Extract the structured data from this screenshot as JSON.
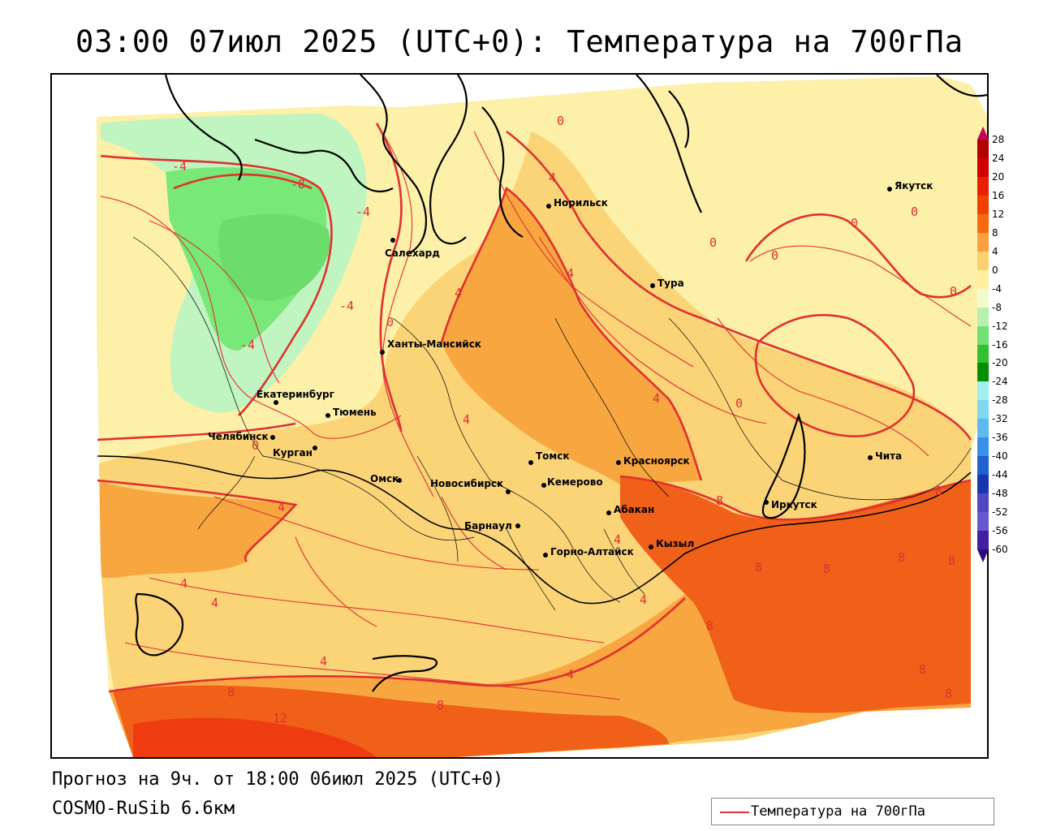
{
  "title": "03:00 07июл 2025 (UTC+0): Температура на 700гПа",
  "forecast_line": "Прогноз на 9ч. от 18:00 06июл 2025 (UTC+0)",
  "model_line": "COSMO-RuSib 6.6км",
  "legend": {
    "label": "Температура на 700гПа",
    "line_color": "#e03030"
  },
  "colors": {
    "temp_bands": {
      "lt_-8": "#6cdc6c",
      "-8_-4": "#78e878",
      "-4_0": "#c0f4c0",
      "0_4": "#fdf0a8",
      "4_8": "#fbd478",
      "8_12": "#f8a640",
      "12_16": "#f06018",
      "16_20": "#ee3c10",
      "gt_20": "#e02808"
    },
    "contour_line": "#e03030"
  },
  "color_scale": {
    "ticks": [
      "28",
      "24",
      "20",
      "16",
      "12",
      "8",
      "4",
      "0",
      "-4",
      "-8",
      "-12",
      "-16",
      "-20",
      "-24",
      "-28",
      "-32",
      "-36",
      "-40",
      "-44",
      "-48",
      "-52",
      "-56",
      "-60"
    ],
    "steps": [
      "#c80060",
      "#b00000",
      "#d00000",
      "#e82000",
      "#f04000",
      "#f86a10",
      "#fba040",
      "#fbd070",
      "#fff0a0",
      "#f4fad0",
      "#b8f0b0",
      "#70e070",
      "#30c030",
      "#009000",
      "#a0f0f0",
      "#80d8f0",
      "#60b8f0",
      "#3890e8",
      "#2060d0",
      "#1838b0",
      "#5048c0",
      "#6858d0",
      "#4020a0",
      "#300880"
    ]
  },
  "cities": [
    {
      "name": "Салехард"
    },
    {
      "name": "Норильск"
    },
    {
      "name": "Тура"
    },
    {
      "name": "Якутск"
    },
    {
      "name": "Ханты-Мансийск"
    },
    {
      "name": "Екатеринбург"
    },
    {
      "name": "Тюмень"
    },
    {
      "name": "Челябинск"
    },
    {
      "name": "Курган"
    },
    {
      "name": "Омск"
    },
    {
      "name": "Томск"
    },
    {
      "name": "Новосибирск"
    },
    {
      "name": "Кемерово"
    },
    {
      "name": "Красноярск"
    },
    {
      "name": "Абакан"
    },
    {
      "name": "Барнаул"
    },
    {
      "name": "Горно-Алтайск"
    },
    {
      "name": "Кызыл"
    },
    {
      "name": "Иркутск"
    },
    {
      "name": "Чита"
    }
  ],
  "contour_labels": [
    "-4",
    "-8",
    "-4",
    "-4",
    "-4",
    "0",
    "0",
    "0",
    "0",
    "0",
    "0",
    "0",
    "0",
    "0",
    "4",
    "4",
    "4",
    "4",
    "4",
    "4",
    "4",
    "4",
    "4",
    "4",
    "4",
    "4",
    "8",
    "8",
    "8",
    "8",
    "8",
    "8",
    "8",
    "8",
    "8",
    "8",
    "8",
    "12"
  ]
}
